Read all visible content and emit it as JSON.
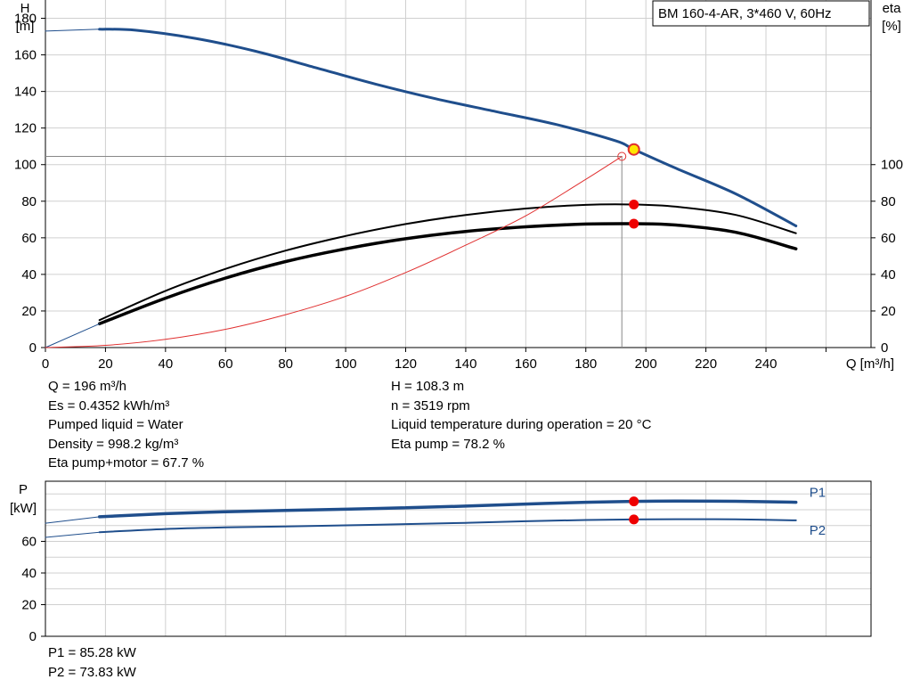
{
  "chart_data": [
    {
      "type": "line",
      "model_label": "BM 160-4-AR, 3*460 V, 60Hz",
      "x_axis": {
        "label": "Q [m³/h]",
        "range": [
          0,
          275
        ],
        "ticks": [
          0,
          20,
          40,
          60,
          80,
          100,
          120,
          140,
          160,
          180,
          200,
          220,
          240
        ]
      },
      "y_left": {
        "label_line1": "H",
        "label_line2": "[m]",
        "range": [
          0,
          190
        ],
        "ticks": [
          0,
          20,
          40,
          60,
          80,
          100,
          120,
          140,
          160,
          180
        ]
      },
      "y_right": {
        "label_line1": "eta",
        "label_line2": "[%]",
        "range": [
          0,
          190
        ],
        "ticks": [
          0,
          20,
          40,
          60,
          80,
          100
        ]
      },
      "grid": true,
      "series": [
        {
          "key": "H",
          "color": "#1f4e8c",
          "x": [
            18,
            30,
            50,
            70,
            90,
            110,
            130,
            150,
            170,
            190,
            196,
            210,
            230,
            250
          ],
          "y": [
            174,
            173.5,
            169,
            162,
            153,
            144,
            136,
            129,
            122,
            113,
            108.3,
            98,
            84,
            66.5
          ]
        },
        {
          "key": "eta_pump",
          "color": "#000000",
          "x": [
            18,
            40,
            60,
            80,
            100,
            120,
            140,
            160,
            180,
            196,
            210,
            230,
            250
          ],
          "y": [
            15,
            31,
            43,
            53,
            61,
            67.5,
            72.5,
            76,
            78,
            78.2,
            77,
            72.5,
            62.5
          ]
        },
        {
          "key": "eta_pump_motor",
          "color": "#000000",
          "x": [
            18,
            40,
            60,
            80,
            100,
            120,
            140,
            160,
            180,
            196,
            210,
            230,
            250
          ],
          "y": [
            13,
            27,
            38,
            47,
            54,
            59.5,
            63.5,
            66,
            67.5,
            67.7,
            67,
            63,
            54
          ]
        },
        {
          "key": "H_extrapolated_low",
          "color": "#1f4e8c",
          "x": [
            0,
            18
          ],
          "y": [
            173,
            174
          ]
        },
        {
          "key": "eta_extrapolated_low",
          "color": "#1f4e8c",
          "x": [
            0,
            18
          ],
          "y": [
            0,
            13
          ]
        },
        {
          "key": "system_curve",
          "color": "#e03030",
          "x": [
            0,
            20,
            40,
            60,
            80,
            100,
            120,
            140,
            160,
            180,
            192
          ],
          "y": [
            0,
            1.2,
            4.5,
            10,
            18,
            28,
            41,
            56,
            72,
            92,
            104.5
          ]
        }
      ],
      "duty_point": {
        "Q": 196,
        "H": 108.3,
        "eta_pump": 78.2,
        "eta_pump_motor": 67.7
      },
      "system_point": {
        "Q": 192,
        "H": 104.5
      }
    },
    {
      "type": "line",
      "x_axis": {
        "range": [
          0,
          275
        ]
      },
      "y_axis": {
        "label_line1": "P",
        "label_line2": "[kW]",
        "range": [
          0,
          98
        ],
        "ticks": [
          0,
          20,
          40,
          60
        ]
      },
      "grid": true,
      "series": [
        {
          "name": "P1",
          "color": "#1f4e8c",
          "x": [
            18,
            40,
            60,
            80,
            100,
            120,
            140,
            160,
            180,
            196,
            210,
            230,
            250
          ],
          "y": [
            75.5,
            77.5,
            78.7,
            79.5,
            80.3,
            81.2,
            82.3,
            83.6,
            84.7,
            85.28,
            85.5,
            85.3,
            84.7
          ]
        },
        {
          "name": "P2",
          "color": "#1f4e8c",
          "x": [
            18,
            40,
            60,
            80,
            100,
            120,
            140,
            160,
            180,
            196,
            210,
            230,
            250
          ],
          "y": [
            65.8,
            67.8,
            68.8,
            69.4,
            70.1,
            70.9,
            71.7,
            72.7,
            73.5,
            73.83,
            74,
            73.9,
            73.3
          ]
        },
        {
          "name": "",
          "color": "#1f4e8c",
          "x": [
            0,
            18
          ],
          "y": [
            71.5,
            75.5
          ]
        },
        {
          "name": "",
          "color": "#1f4e8c",
          "x": [
            0,
            18
          ],
          "y": [
            62.5,
            65.8
          ]
        }
      ],
      "duty_point": {
        "Q": 196,
        "P1": 85.28,
        "P2": 73.83
      }
    }
  ],
  "info_left": [
    "Q = 196 m³/h",
    "Es = 0.4352 kWh/m³",
    "Pumped liquid = Water",
    "Density = 998.2 kg/m³",
    "Eta pump+motor = 67.7 %"
  ],
  "info_right": [
    "H = 108.3 m",
    "n = 3519 rpm",
    "Liquid temperature during operation = 20 °C",
    "Eta pump = 78.2 %"
  ],
  "power_info": [
    "P1 = 85.28 kW",
    "P2 = 73.83 kW"
  ]
}
